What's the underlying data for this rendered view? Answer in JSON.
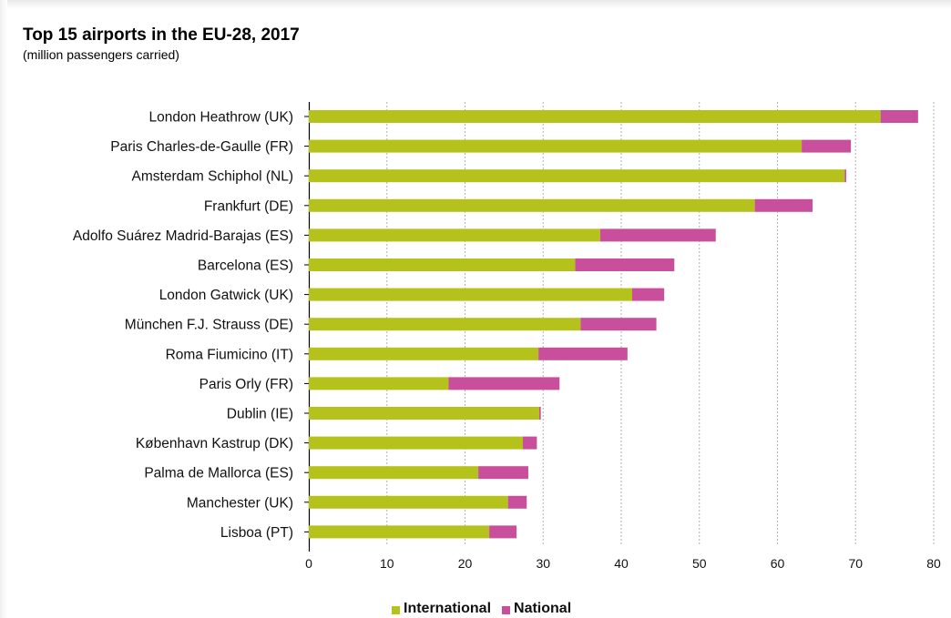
{
  "chart_data": {
    "type": "bar",
    "orientation": "horizontal",
    "stacked": true,
    "title": "Top 15 airports in the EU-28, 2017",
    "subtitle": "(million passengers carried)",
    "categories": [
      "London Heathrow (UK)",
      "Paris Charles-de-Gaulle (FR)",
      "Amsterdam Schiphol (NL)",
      "Frankfurt (DE)",
      "Adolfo Suárez Madrid-Barajas (ES)",
      "Barcelona (ES)",
      "London Gatwick (UK)",
      "München F.J. Strauss (DE)",
      "Roma Fiumicino (IT)",
      "Paris Orly (FR)",
      "Dublin (IE)",
      "København Kastrup (DK)",
      "Palma de Mallorca (ES)",
      "Manchester (UK)",
      "Lisboa (PT)"
    ],
    "series": [
      {
        "name": "International",
        "color": "#b5c21b",
        "values": [
          73.2,
          63.1,
          68.6,
          57.1,
          37.3,
          34.1,
          41.4,
          34.8,
          29.4,
          17.9,
          29.5,
          27.4,
          21.7,
          25.5,
          23.1
        ]
      },
      {
        "name": "National",
        "color": "#c94f9c",
        "values": [
          4.8,
          6.3,
          0.2,
          7.4,
          14.8,
          12.7,
          4.1,
          9.7,
          11.4,
          14.2,
          0.2,
          1.8,
          6.4,
          2.4,
          3.5
        ]
      }
    ],
    "xlim": [
      0,
      80
    ],
    "xticks": [
      0,
      10,
      20,
      30,
      40,
      50,
      60,
      70,
      80
    ],
    "xlabel": "",
    "ylabel": "",
    "grid": "vertical dashed",
    "legend_position": "bottom"
  }
}
